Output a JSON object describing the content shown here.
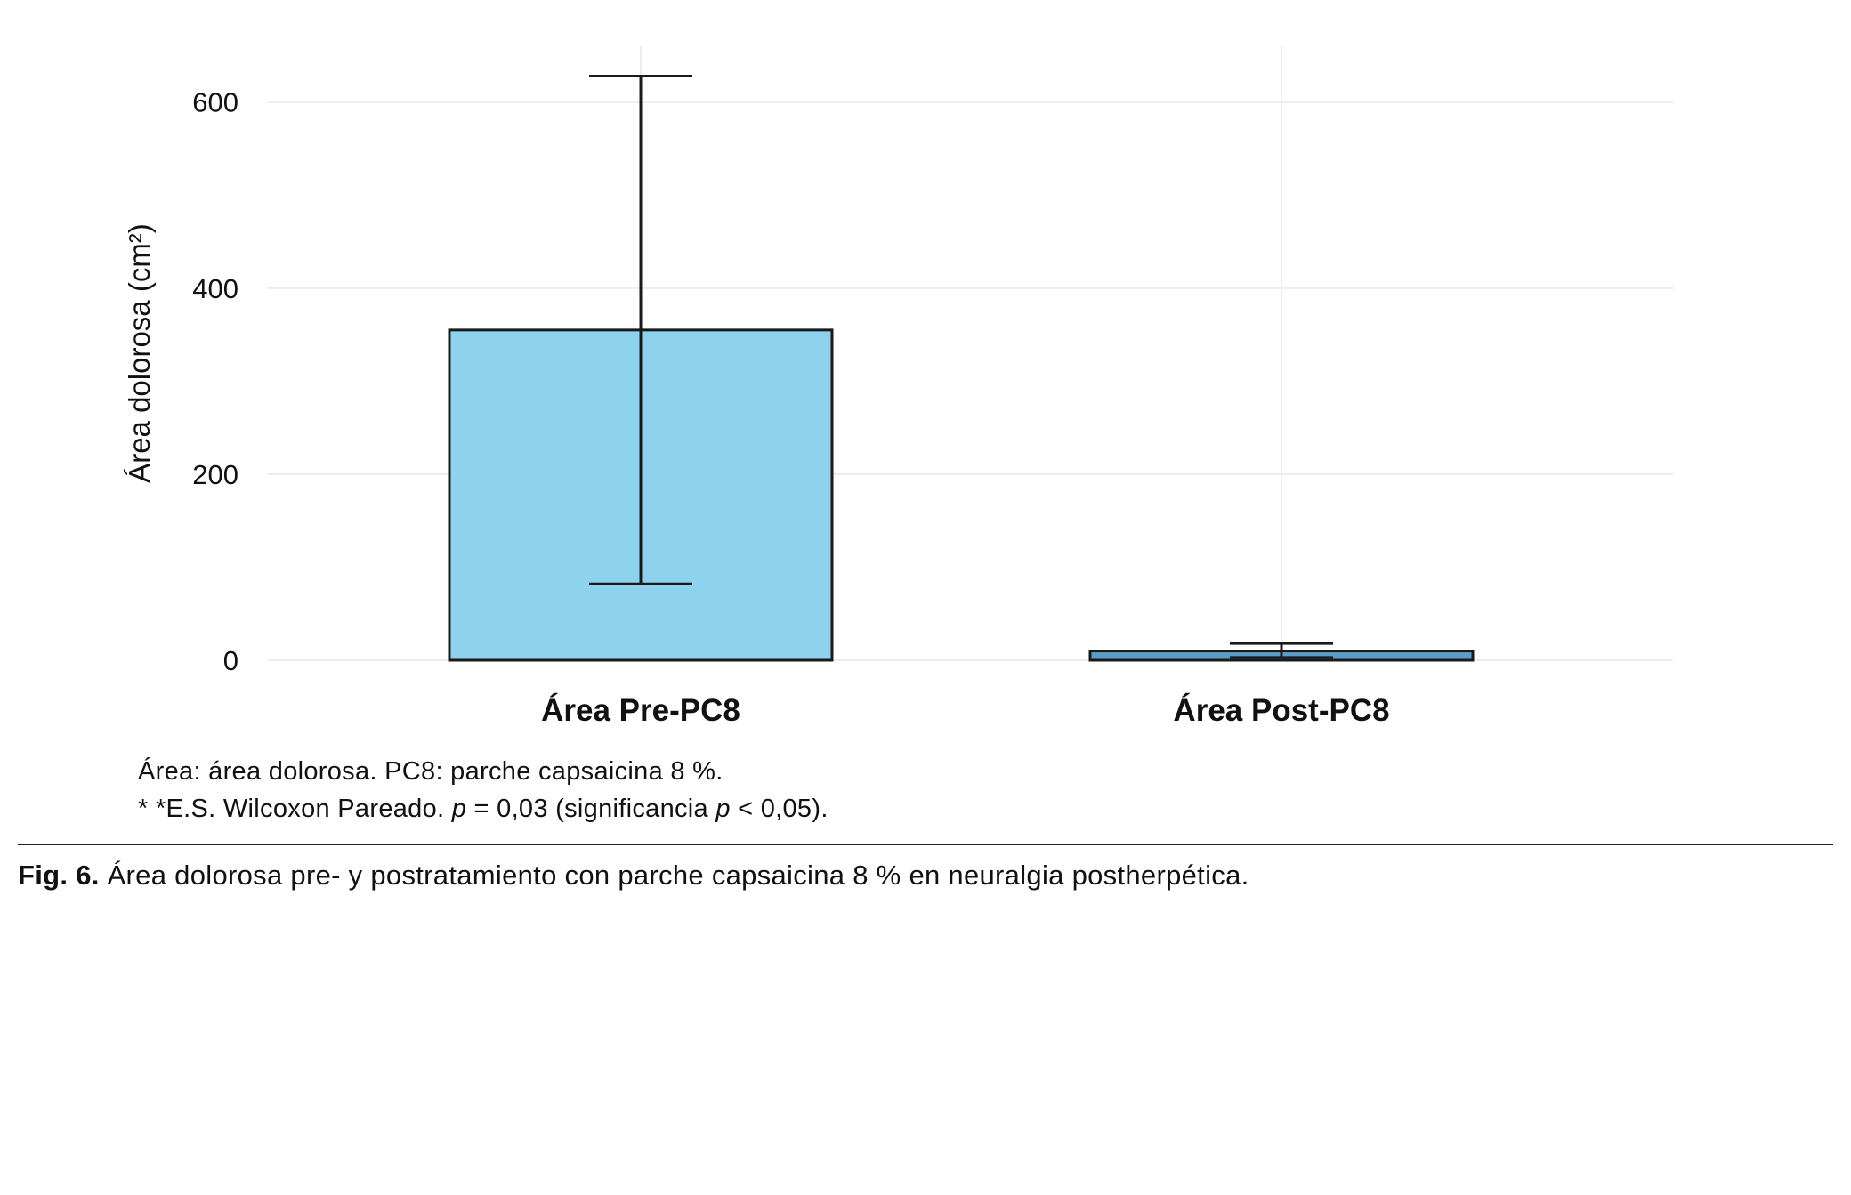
{
  "chart_data": {
    "type": "bar",
    "categories": [
      "Área Pre-PC8",
      "Área Post-PC8"
    ],
    "values": [
      355,
      10
    ],
    "error_low": [
      82,
      3
    ],
    "error_high": [
      628,
      18
    ],
    "bar_colors": [
      "#8fd2ee",
      "#5d9bc8"
    ],
    "bar_stroke": "#1a1a1a",
    "error_color": "#1a1a1a",
    "grid_color": "#ececec",
    "title": "",
    "xlabel": "",
    "ylabel": "Área dolorosa (cm²)",
    "yticks": [
      0,
      200,
      400,
      600
    ],
    "ylim": [
      0,
      660
    ],
    "grid": true,
    "legend": "none"
  },
  "footnotes": {
    "line1": "Área: área dolorosa. PC8: parche capsaicina 8 %.",
    "line2": {
      "part1": "* *E.S. Wilcoxon Pareado. ",
      "p1": "p",
      "part2": " = 0,03 (significancia ",
      "p2": "p",
      "part3": " < 0,05)."
    }
  },
  "caption": {
    "label": "Fig. 6.",
    "text": " Área dolorosa pre- y postratamiento con parche capsaicina 8 % en neuralgia postherpética."
  }
}
